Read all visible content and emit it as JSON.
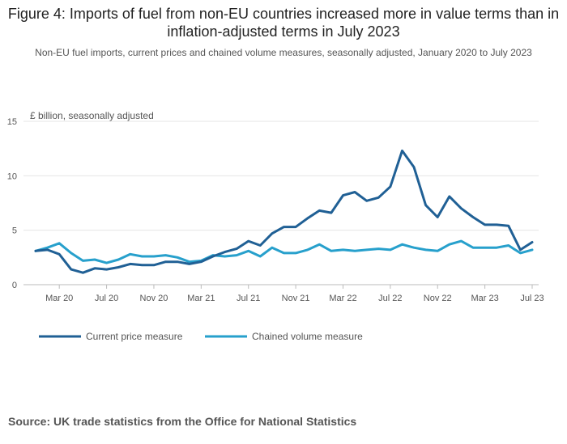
{
  "title": "Figure 4: Imports of fuel from non-EU countries increased more in value terms than in inflation-adjusted terms in July 2023",
  "subtitle": "Non-EU fuel imports, current prices and chained volume measures, seasonally adjusted, January 2020 to July 2023",
  "source": "Source: UK trade statistics from the Office for National Statistics",
  "chart_data": {
    "type": "line",
    "ylabel": "£ billion, seasonally adjusted",
    "ylim": [
      0,
      15
    ],
    "yticks": [
      0,
      5,
      10,
      15
    ],
    "grid": true,
    "legend_position": "bottom-left",
    "x_tick_labels": [
      "Mar 20",
      "Jul 20",
      "Nov 20",
      "Mar 21",
      "Jul 21",
      "Nov 21",
      "Mar 22",
      "Jul 22",
      "Nov 22",
      "Mar 23",
      "Jul 23"
    ],
    "x_tick_index": [
      2,
      6,
      10,
      14,
      18,
      22,
      26,
      30,
      34,
      38,
      42
    ],
    "x": [
      "Jan 2020",
      "Feb 2020",
      "Mar 2020",
      "Apr 2020",
      "May 2020",
      "Jun 2020",
      "Jul 2020",
      "Aug 2020",
      "Sep 2020",
      "Oct 2020",
      "Nov 2020",
      "Dec 2020",
      "Jan 2021",
      "Feb 2021",
      "Mar 2021",
      "Apr 2021",
      "May 2021",
      "Jun 2021",
      "Jul 2021",
      "Aug 2021",
      "Sep 2021",
      "Oct 2021",
      "Nov 2021",
      "Dec 2021",
      "Jan 2022",
      "Feb 2022",
      "Mar 2022",
      "Apr 2022",
      "May 2022",
      "Jun 2022",
      "Jul 2022",
      "Aug 2022",
      "Sep 2022",
      "Oct 2022",
      "Nov 2022",
      "Dec 2022",
      "Jan 2023",
      "Feb 2023",
      "Mar 2023",
      "Apr 2023",
      "May 2023",
      "Jun 2023",
      "Jul 2023"
    ],
    "series": [
      {
        "name": "Current price measure",
        "color": "#206095",
        "values": [
          3.1,
          3.2,
          2.8,
          1.4,
          1.1,
          1.5,
          1.4,
          1.6,
          1.9,
          1.8,
          1.8,
          2.1,
          2.1,
          1.9,
          2.1,
          2.6,
          3.0,
          3.3,
          4.0,
          3.6,
          4.7,
          5.3,
          5.3,
          6.1,
          6.8,
          6.6,
          8.2,
          8.5,
          7.7,
          8.0,
          9.0,
          12.3,
          10.8,
          7.3,
          6.2,
          8.1,
          7.0,
          6.2,
          5.5,
          5.5,
          5.4,
          3.2,
          3.9
        ]
      },
      {
        "name": "Chained volume measure",
        "color": "#27a0cc",
        "values": [
          3.1,
          3.4,
          3.8,
          2.9,
          2.2,
          2.3,
          2.0,
          2.3,
          2.8,
          2.6,
          2.6,
          2.7,
          2.5,
          2.1,
          2.2,
          2.7,
          2.6,
          2.7,
          3.1,
          2.6,
          3.4,
          2.9,
          2.9,
          3.2,
          3.7,
          3.1,
          3.2,
          3.1,
          3.2,
          3.3,
          3.2,
          3.7,
          3.4,
          3.2,
          3.1,
          3.7,
          4.0,
          3.4,
          3.4,
          3.4,
          3.6,
          2.9,
          3.2
        ]
      }
    ]
  }
}
